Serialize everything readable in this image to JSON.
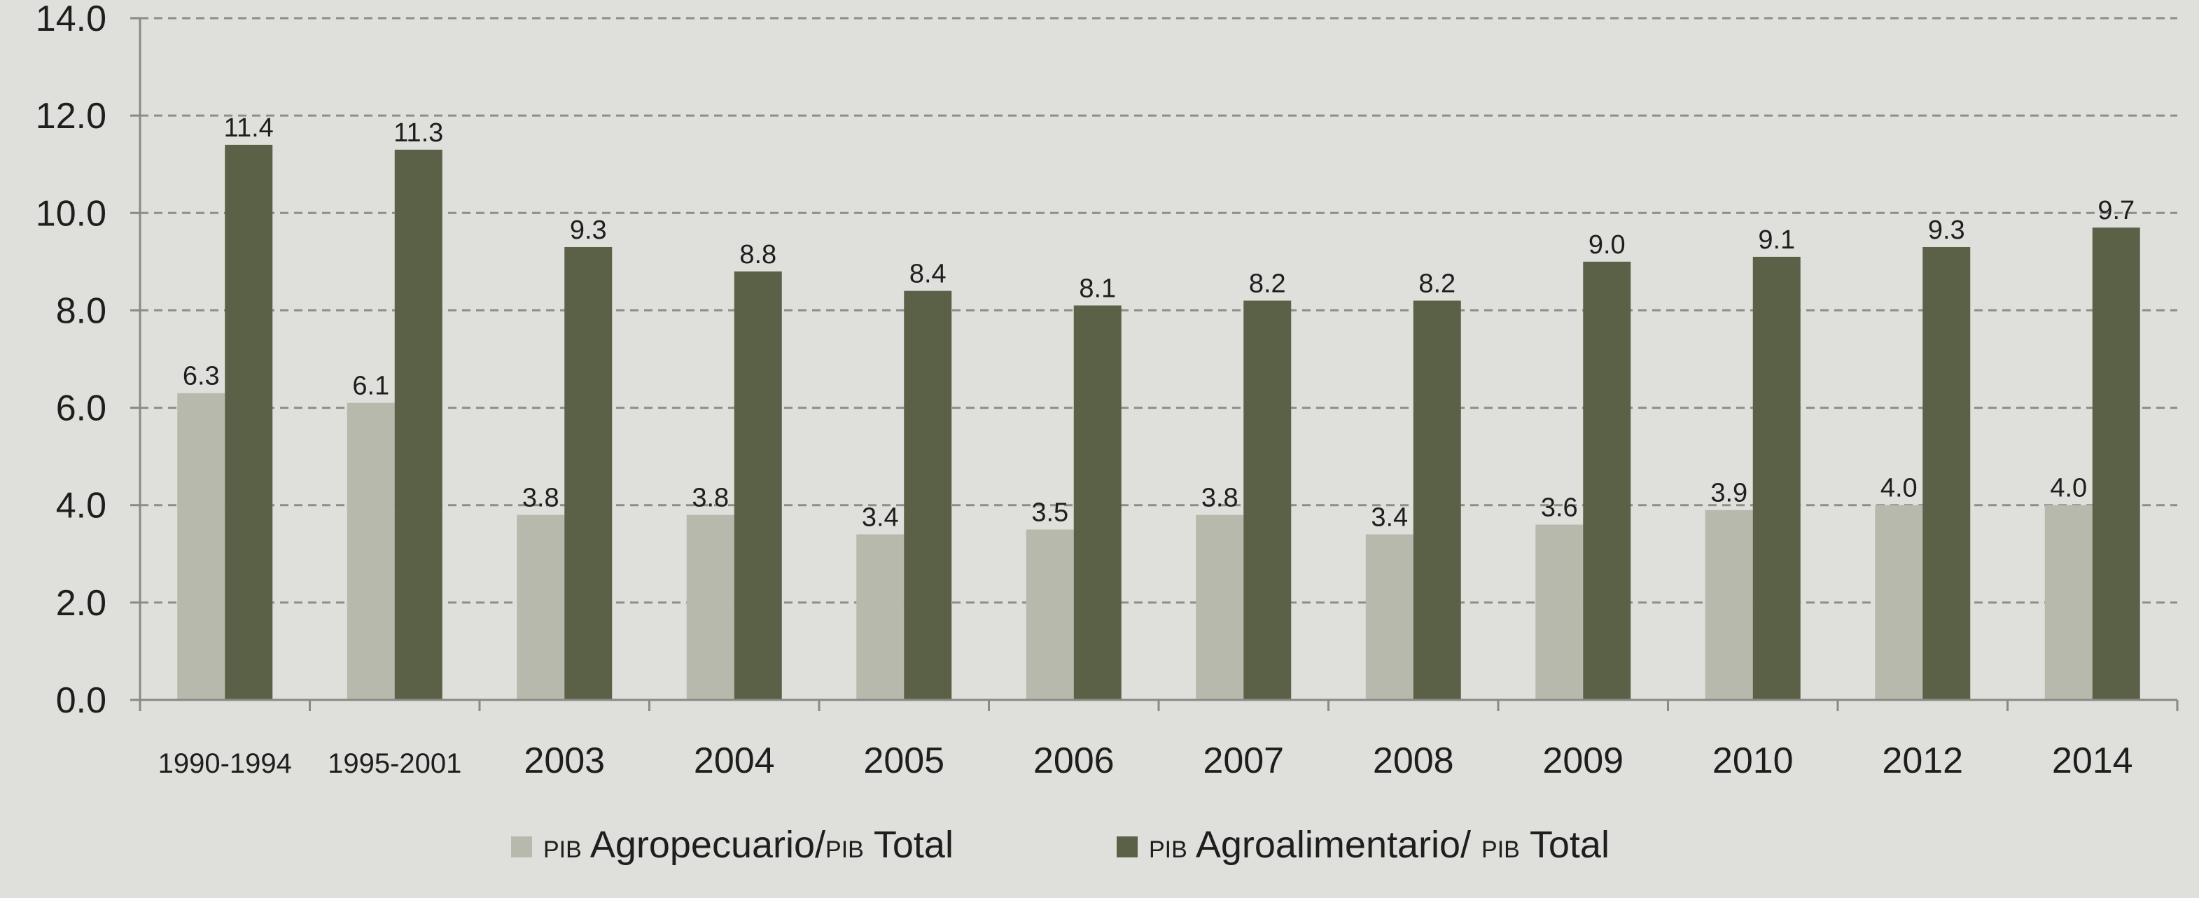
{
  "chart_data": {
    "type": "bar",
    "title": "",
    "xlabel": "",
    "ylabel": "",
    "ylim": [
      0,
      14
    ],
    "yticks": [
      "0.0",
      "2.0",
      "4.0",
      "6.0",
      "8.0",
      "10.0",
      "12.0",
      "14.0"
    ],
    "grid": "horizontal dashed",
    "legend_position": "bottom",
    "categories": [
      "1990-1994",
      "1995-2001",
      "2003",
      "2004",
      "2005",
      "2006",
      "2007",
      "2008",
      "2009",
      "2010",
      "2012",
      "2014"
    ],
    "series": [
      {
        "name": "PIB Agropecuario/PIB Total",
        "legend_parts": [
          {
            "text": "PIB",
            "smallcaps": true
          },
          {
            "text": " Agropecuario/",
            "smallcaps": false
          },
          {
            "text": "PIB",
            "smallcaps": true
          },
          {
            "text": " Total",
            "smallcaps": false
          }
        ],
        "color": "#b8b9ad",
        "values": [
          6.3,
          6.1,
          3.8,
          3.8,
          3.4,
          3.5,
          3.8,
          3.4,
          3.6,
          3.9,
          4.0,
          4.0
        ],
        "labels": [
          "6.3",
          "6.1",
          "3.8",
          "3.8",
          "3.4",
          "3.5",
          "3.8",
          "3.4",
          "3.6",
          "3.9",
          "4.0",
          "4.0"
        ]
      },
      {
        "name": "PIB Agroalimentario/ PIB Total",
        "legend_parts": [
          {
            "text": "PIB",
            "smallcaps": true
          },
          {
            "text": " Agroalimentario/ ",
            "smallcaps": false
          },
          {
            "text": "PIB",
            "smallcaps": true
          },
          {
            "text": " Total",
            "smallcaps": false
          }
        ],
        "color": "#5a6146",
        "values": [
          11.4,
          11.3,
          9.3,
          8.8,
          8.4,
          8.1,
          8.2,
          8.2,
          9.0,
          9.1,
          9.3,
          9.7
        ],
        "labels": [
          "11.4",
          "11.3",
          "9.3",
          "8.8",
          "8.4",
          "8.1",
          "8.2",
          "8.2",
          "9.0",
          "9.1",
          "9.3",
          "9.7"
        ]
      }
    ]
  },
  "colors": {
    "background": "#dfe0db",
    "axis": "#8a8a85",
    "grid": "#8e8e88",
    "text": "#1e1e1e"
  }
}
